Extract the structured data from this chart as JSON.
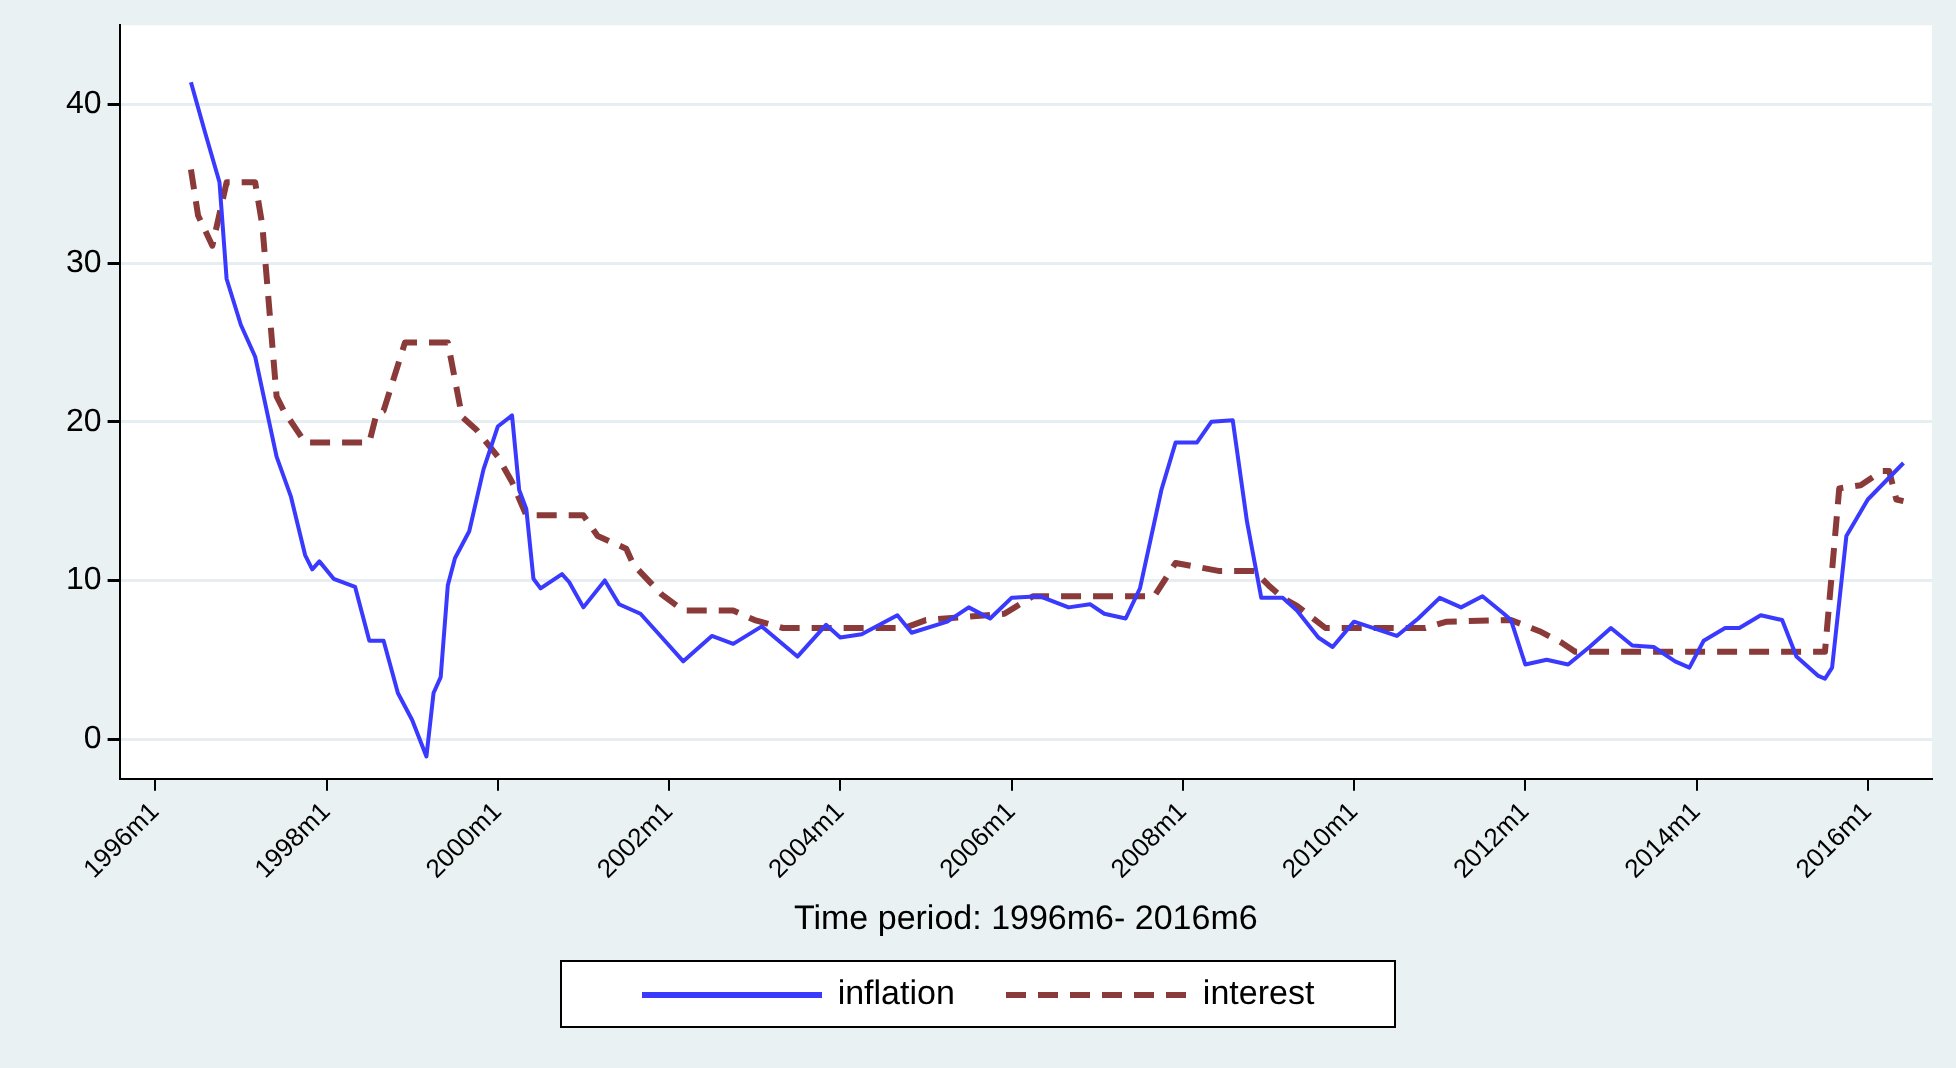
{
  "chart_data": {
    "type": "line",
    "xlabel": "Time period: 1996m6- 2016m6",
    "legend": "bottom",
    "grid": "y",
    "marker": "none",
    "xlim": [
      "1995-08",
      "2016-10"
    ],
    "ylim": [
      -2.5,
      45
    ],
    "xticks": [
      {
        "value": "1996-01",
        "label": "1996m1"
      },
      {
        "value": "1998-01",
        "label": "1998m1"
      },
      {
        "value": "2000-01",
        "label": "2000m1"
      },
      {
        "value": "2002-01",
        "label": "2002m1"
      },
      {
        "value": "2004-01",
        "label": "2004m1"
      },
      {
        "value": "2006-01",
        "label": "2006m1"
      },
      {
        "value": "2008-01",
        "label": "2008m1"
      },
      {
        "value": "2010-01",
        "label": "2010m1"
      },
      {
        "value": "2012-01",
        "label": "2012m1"
      },
      {
        "value": "2014-01",
        "label": "2014m1"
      },
      {
        "value": "2016-01",
        "label": "2016m1"
      }
    ],
    "yticks": [
      0,
      10,
      20,
      30,
      40
    ],
    "series": [
      {
        "name": "inflation",
        "color": "#3a3aff",
        "line_style": "solid",
        "x": [
          "1996-06",
          "1996-08",
          "1996-10",
          "1996-11",
          "1997-01",
          "1997-03",
          "1997-06",
          "1997-08",
          "1997-10",
          "1997-11",
          "1997-12",
          "1998-02",
          "1998-05",
          "1998-06",
          "1998-07",
          "1998-09",
          "1998-11",
          "1999-01",
          "1999-03",
          "1999-04",
          "1999-05",
          "1999-06",
          "1999-07",
          "1999-09",
          "1999-11",
          "2000-01",
          "2000-03",
          "2000-04",
          "2000-05",
          "2000-06",
          "2000-07",
          "2000-08",
          "2000-10",
          "2000-11",
          "2001-01",
          "2001-04",
          "2001-06",
          "2001-09",
          "2001-12",
          "2002-03",
          "2002-07",
          "2002-10",
          "2003-02",
          "2003-07",
          "2003-11",
          "2004-01",
          "2004-04",
          "2004-09",
          "2004-11",
          "2005-04",
          "2005-07",
          "2005-10",
          "2006-01",
          "2006-05",
          "2006-09",
          "2006-12",
          "2007-02",
          "2007-05",
          "2007-07",
          "2007-10",
          "2007-12",
          "2008-03",
          "2008-05",
          "2008-08",
          "2008-10",
          "2008-12",
          "2009-03",
          "2009-05",
          "2009-08",
          "2009-10",
          "2010-01",
          "2010-07",
          "2010-10",
          "2011-01",
          "2011-04",
          "2011-07",
          "2011-10",
          "2011-11",
          "2012-01",
          "2012-04",
          "2012-07",
          "2012-10",
          "2013-01",
          "2013-04",
          "2013-07",
          "2013-10",
          "2013-12",
          "2014-02",
          "2014-05",
          "2014-07",
          "2014-10",
          "2015-01",
          "2015-03",
          "2015-06",
          "2015-07",
          "2015-08",
          "2015-10",
          "2016-01",
          "2016-06"
        ],
        "values": [
          41.4,
          38.2,
          35.1,
          29.0,
          26.1,
          24.1,
          17.8,
          15.3,
          11.6,
          10.7,
          11.2,
          10.1,
          9.6,
          7.9,
          6.2,
          6.2,
          2.9,
          1.2,
          -1.1,
          2.9,
          3.9,
          9.7,
          11.4,
          13.1,
          17.0,
          19.7,
          20.4,
          15.7,
          14.5,
          10.1,
          9.5,
          9.8,
          10.4,
          9.9,
          8.3,
          10.0,
          8.5,
          7.9,
          6.4,
          4.9,
          6.5,
          6.0,
          7.1,
          5.2,
          7.2,
          6.4,
          6.6,
          7.8,
          6.7,
          7.4,
          8.3,
          7.6,
          8.9,
          9.0,
          8.3,
          8.5,
          7.9,
          7.6,
          9.5,
          15.7,
          18.7,
          18.7,
          20.0,
          20.1,
          13.7,
          8.9,
          8.9,
          8.1,
          6.4,
          5.8,
          7.4,
          6.5,
          7.6,
          8.9,
          8.3,
          9.0,
          7.9,
          7.5,
          4.7,
          5.0,
          4.7,
          5.8,
          7.0,
          5.9,
          5.8,
          4.9,
          4.5,
          6.2,
          7.0,
          7.0,
          7.8,
          7.5,
          5.2,
          4.0,
          3.8,
          4.5,
          12.8,
          15.1,
          17.4
        ]
      },
      {
        "name": "interest",
        "color": "#8b3a3a",
        "line_style": "dashed",
        "x": [
          "1996-06",
          "1996-07",
          "1996-09",
          "1996-11",
          "1997-03",
          "1997-04",
          "1997-06",
          "1997-07",
          "1997-10",
          "1998-07",
          "1998-08",
          "1998-09",
          "1998-12",
          "1999-06",
          "1999-08",
          "1999-10",
          "2000-01",
          "2000-03",
          "2000-05",
          "2001-01",
          "2001-03",
          "2001-07",
          "2001-08",
          "2001-12",
          "2002-03",
          "2002-10",
          "2003-01",
          "2003-05",
          "2004-10",
          "2005-01",
          "2005-12",
          "2006-04",
          "2007-09",
          "2007-12",
          "2008-06",
          "2008-11",
          "2009-01",
          "2009-03",
          "2009-05",
          "2009-09",
          "2010-11",
          "2011-02",
          "2011-11",
          "2012-03",
          "2012-06",
          "2012-08",
          "2015-07",
          "2015-09",
          "2015-12",
          "2016-03",
          "2016-04",
          "2016-05",
          "2016-06"
        ],
        "values": [
          35.9,
          33.0,
          31.1,
          35.1,
          35.1,
          32.4,
          21.6,
          20.7,
          18.7,
          18.7,
          20.5,
          20.7,
          25.0,
          25.0,
          20.3,
          19.5,
          17.8,
          16.2,
          14.1,
          14.1,
          12.8,
          12.0,
          11.0,
          9.1,
          8.1,
          8.1,
          7.5,
          7.0,
          7.0,
          7.5,
          7.9,
          9.0,
          9.0,
          11.1,
          10.6,
          10.6,
          9.7,
          8.9,
          8.4,
          7.0,
          7.0,
          7.4,
          7.5,
          6.8,
          6.1,
          5.5,
          5.5,
          15.8,
          16.0,
          16.9,
          16.9,
          15.1,
          15.0
        ]
      }
    ]
  }
}
